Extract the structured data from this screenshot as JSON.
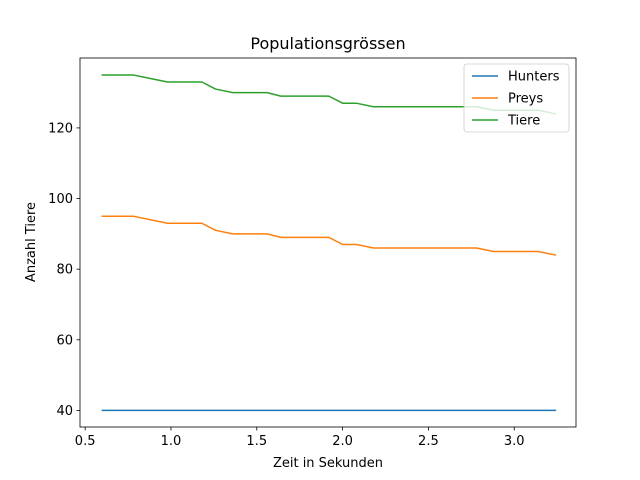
{
  "chart_data": {
    "type": "line",
    "title": "Populationsgrössen",
    "xlabel": "Zeit in Sekunden",
    "ylabel": "Anzahl Tiere",
    "xlim": [
      0.47,
      3.36
    ],
    "ylim": [
      35.3,
      139.8
    ],
    "xticks": [
      0.5,
      1.0,
      1.5,
      2.0,
      2.5,
      3.0
    ],
    "xtick_labels": [
      "0.5",
      "1.0",
      "1.5",
      "2.0",
      "2.5",
      "3.0"
    ],
    "yticks": [
      40,
      60,
      80,
      100,
      120
    ],
    "ytick_labels": [
      "40",
      "60",
      "80",
      "100",
      "120"
    ],
    "grid": false,
    "legend_position": "top-right",
    "x": [
      0.6,
      0.68,
      0.78,
      0.88,
      0.98,
      1.08,
      1.18,
      1.26,
      1.36,
      1.46,
      1.56,
      1.64,
      1.74,
      1.84,
      1.92,
      2.0,
      2.08,
      2.18,
      2.28,
      2.38,
      2.48,
      2.58,
      2.68,
      2.78,
      2.88,
      2.98,
      3.06,
      3.14,
      3.24
    ],
    "series": [
      {
        "name": "Hunters",
        "color": "#1f77b4",
        "values": [
          40,
          40,
          40,
          40,
          40,
          40,
          40,
          40,
          40,
          40,
          40,
          40,
          40,
          40,
          40,
          40,
          40,
          40,
          40,
          40,
          40,
          40,
          40,
          40,
          40,
          40,
          40,
          40,
          40
        ]
      },
      {
        "name": "Preys",
        "color": "#ff7f0e",
        "values": [
          95,
          95,
          95,
          94,
          93,
          93,
          93,
          91,
          90,
          90,
          90,
          89,
          89,
          89,
          89,
          87,
          87,
          86,
          86,
          86,
          86,
          86,
          86,
          86,
          85,
          85,
          85,
          85,
          84
        ]
      },
      {
        "name": "Tiere",
        "color": "#2ca02c",
        "values": [
          135,
          135,
          135,
          134,
          133,
          133,
          133,
          131,
          130,
          130,
          130,
          129,
          129,
          129,
          129,
          127,
          127,
          126,
          126,
          126,
          126,
          126,
          126,
          126,
          125,
          125,
          125,
          125,
          124
        ]
      }
    ]
  }
}
